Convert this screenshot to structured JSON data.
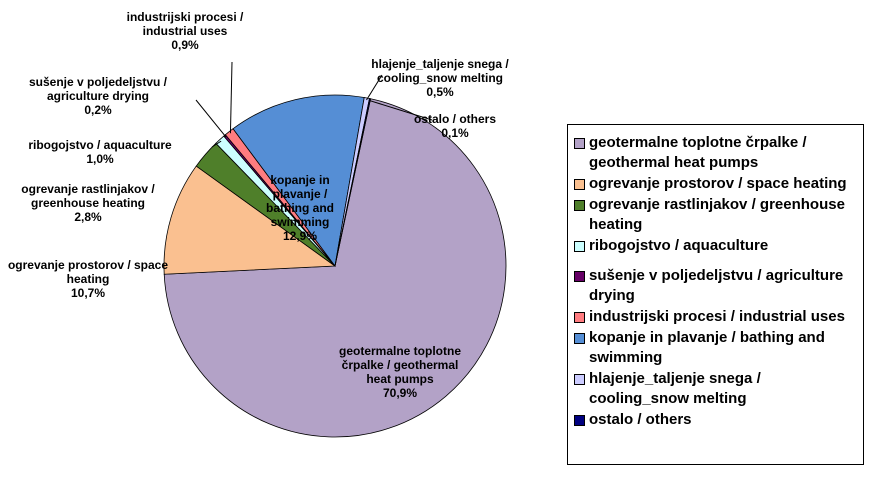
{
  "chart_data": {
    "type": "pie",
    "categories": [
      "geotermalne toplotne črpalke / geothermal heat pumps",
      "ogrevanje prostorov / space heating",
      "ogrevanje rastlinjakov / greenhouse heating",
      "ribogojstvo / aquaculture",
      "sušenje v poljedeljstvu / agriculture drying",
      "industrijski procesi / industrial uses",
      "kopanje in plavanje / bathing and swimming",
      "hlajenje_taljenje snega / cooling_snow melting",
      "ostalo / others"
    ],
    "values": [
      70.9,
      10.7,
      2.8,
      1.0,
      0.2,
      0.9,
      12.9,
      0.5,
      0.1
    ],
    "value_labels": [
      "70,9%",
      "10,7%",
      "2,8%",
      "1,0%",
      "0,2%",
      "0,9%",
      "12,9%",
      "0,5%",
      "0,1%"
    ],
    "colors": [
      "#b3a2c7",
      "#fac090",
      "#4f7f2a",
      "#ccffff",
      "#660066",
      "#ff7c80",
      "#558ed5",
      "#ccccff",
      "#000080"
    ],
    "legend": "right"
  }
}
